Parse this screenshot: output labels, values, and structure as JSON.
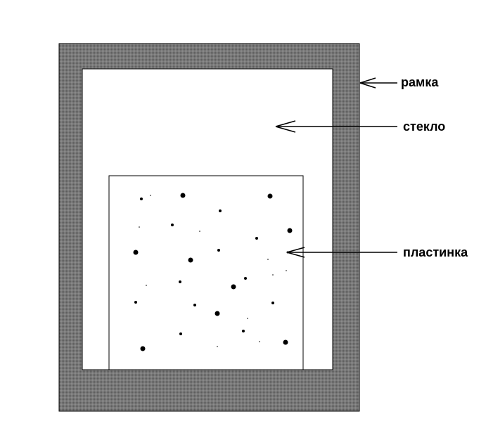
{
  "diagram": {
    "labels": {
      "frame": "рамка",
      "glass": "стекло",
      "plate": "пластинка"
    },
    "colors": {
      "frame_fill": "#7a7a7a",
      "frame_hatch": "#555555",
      "glass_fill": "#ffffff",
      "plate_fill": "#ffffff",
      "outline": "#000000",
      "dots": "#000000"
    }
  }
}
